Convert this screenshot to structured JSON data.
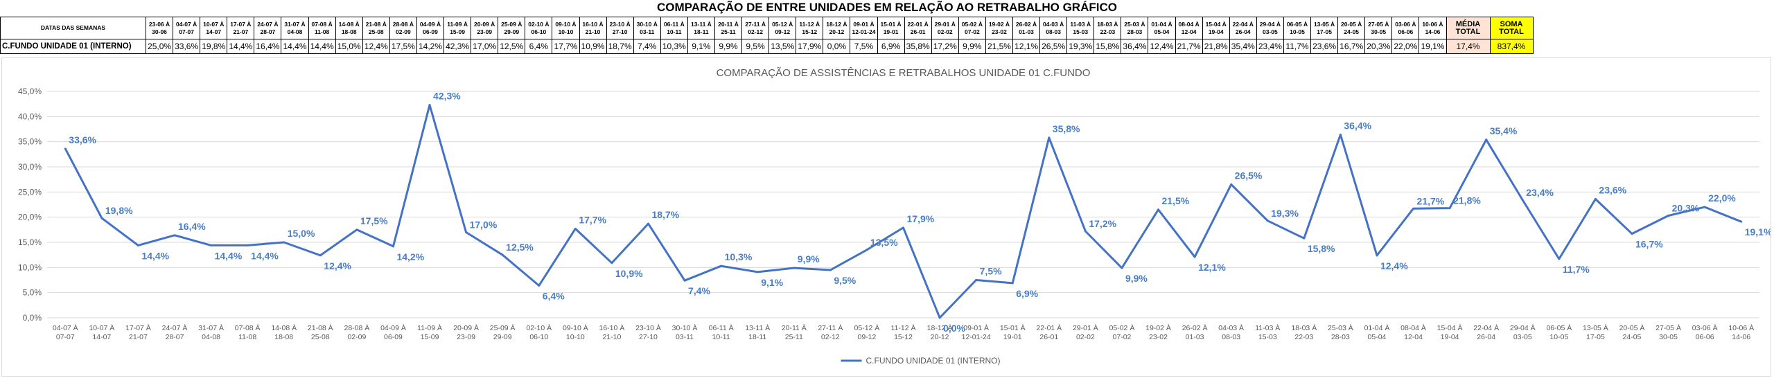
{
  "header": {
    "title": "COMPARAÇÃO DE ENTRE UNIDADES EM RELAÇÃO AO RETRABALHO GRÁFICO"
  },
  "table": {
    "row_header": "DATAS DAS SEMANAS",
    "unit_label": "C.FUNDO UNIDADE 01 (INTERNO)",
    "date_ranges": [
      [
        "23-06 À",
        "30-06"
      ],
      [
        "04-07 À",
        "07-07"
      ],
      [
        "10-07 À",
        "14-07"
      ],
      [
        "17-07 À",
        "21-07"
      ],
      [
        "24-07 À",
        "28-07"
      ],
      [
        "31-07 À",
        "04-08"
      ],
      [
        "07-08 À",
        "11-08"
      ],
      [
        "14-08 À",
        "18-08"
      ],
      [
        "21-08 À",
        "25-08"
      ],
      [
        "28-08 À",
        "02-09"
      ],
      [
        "04-09 À",
        "06-09"
      ],
      [
        "11-09 À",
        "15-09"
      ],
      [
        "20-09 À",
        "23-09"
      ],
      [
        "25-09 À",
        "29-09"
      ],
      [
        "02-10 À",
        "06-10"
      ],
      [
        "09-10 À",
        "10-10"
      ],
      [
        "16-10 À",
        "21-10"
      ],
      [
        "23-10 À",
        "27-10"
      ],
      [
        "30-10 À",
        "03-11"
      ],
      [
        "06-11 À",
        "10-11"
      ],
      [
        "13-11 À",
        "18-11"
      ],
      [
        "20-11 À",
        "25-11"
      ],
      [
        "27-11 À",
        "02-12"
      ],
      [
        "05-12 À",
        "09-12"
      ],
      [
        "11-12 À",
        "15-12"
      ],
      [
        "18-12 À",
        "20-12"
      ],
      [
        "09-01 À",
        "12-01-24"
      ],
      [
        "15-01 À",
        "19-01"
      ],
      [
        "22-01 À",
        "26-01"
      ],
      [
        "29-01 À",
        "02-02"
      ],
      [
        "05-02 À",
        "07-02"
      ],
      [
        "19-02 À",
        "23-02"
      ],
      [
        "26-02 À",
        "01-03"
      ],
      [
        "04-03 À",
        "08-03"
      ],
      [
        "11-03 À",
        "15-03"
      ],
      [
        "18-03 À",
        "22-03"
      ],
      [
        "25-03 À",
        "28-03"
      ],
      [
        "01-04 À",
        "05-04"
      ],
      [
        "08-04 À",
        "12-04"
      ],
      [
        "15-04 À",
        "19-04"
      ],
      [
        "22-04 À",
        "26-04"
      ],
      [
        "29-04 À",
        "03-05"
      ],
      [
        "06-05 À",
        "10-05"
      ],
      [
        "13-05 À",
        "17-05"
      ],
      [
        "20-05 À",
        "24-05"
      ],
      [
        "27-05 À",
        "30-05"
      ],
      [
        "03-06 À",
        "06-06"
      ],
      [
        "10-06 À",
        "14-06"
      ]
    ],
    "values": [
      "25,0%",
      "33,6%",
      "19,8%",
      "14,4%",
      "16,4%",
      "14,4%",
      "14,4%",
      "15,0%",
      "12,4%",
      "17,5%",
      "14,2%",
      "42,3%",
      "17,0%",
      "12,5%",
      "6,4%",
      "17,7%",
      "10,9%",
      "18,7%",
      "7,4%",
      "10,3%",
      "9,1%",
      "9,9%",
      "9,5%",
      "13,5%",
      "17,9%",
      "0,0%",
      "7,5%",
      "6,9%",
      "35,8%",
      "17,2%",
      "9,9%",
      "21,5%",
      "12,1%",
      "26,5%",
      "19,3%",
      "15,8%",
      "36,4%",
      "12,4%",
      "21,7%",
      "21,8%",
      "35,4%",
      "23,4%",
      "11,7%",
      "23,6%",
      "16,7%",
      "20,3%",
      "22,0%",
      "19,1%"
    ],
    "media_label": [
      "MÉDIA",
      "TOTAL"
    ],
    "media_value": "17,4%",
    "soma_label": [
      "SOMA",
      "TOTAL"
    ],
    "soma_value": "837,4%",
    "colors": {
      "media_bg": "#ffe4d6",
      "soma_bg": "#ffff00"
    }
  },
  "chart_data": {
    "type": "line",
    "title": "COMPARAÇÃO DE ASSISTÊNCIAS E RETRABALHOS UNIDADE 01 C.FUNDO",
    "categories": [
      [
        "04-07 À",
        "07-07"
      ],
      [
        "10-07 À",
        "14-07"
      ],
      [
        "17-07 À",
        "21-07"
      ],
      [
        "24-07 À",
        "28-07"
      ],
      [
        "31-07 À",
        "04-08"
      ],
      [
        "07-08 À",
        "11-08"
      ],
      [
        "14-08 À",
        "18-08"
      ],
      [
        "21-08 À",
        "25-08"
      ],
      [
        "28-08 À",
        "02-09"
      ],
      [
        "04-09 À",
        "06-09"
      ],
      [
        "11-09 À",
        "15-09"
      ],
      [
        "20-09 À",
        "23-09"
      ],
      [
        "25-09 À",
        "29-09"
      ],
      [
        "02-10 À",
        "06-10"
      ],
      [
        "09-10 À",
        "10-10"
      ],
      [
        "16-10 À",
        "21-10"
      ],
      [
        "23-10 À",
        "27-10"
      ],
      [
        "30-10 À",
        "03-11"
      ],
      [
        "06-11 À",
        "10-11"
      ],
      [
        "13-11 À",
        "18-11"
      ],
      [
        "20-11 À",
        "25-11"
      ],
      [
        "27-11 À",
        "02-12"
      ],
      [
        "05-12 À",
        "09-12"
      ],
      [
        "11-12 À",
        "15-12"
      ],
      [
        "18-12 À",
        "20-12"
      ],
      [
        "09-01 À",
        "12-01-24"
      ],
      [
        "15-01 À",
        "19-01"
      ],
      [
        "22-01 À",
        "26-01"
      ],
      [
        "29-01 À",
        "02-02"
      ],
      [
        "05-02 À",
        "07-02"
      ],
      [
        "19-02 À",
        "23-02"
      ],
      [
        "26-02 À",
        "01-03"
      ],
      [
        "04-03 À",
        "08-03"
      ],
      [
        "11-03 À",
        "15-03"
      ],
      [
        "18-03 À",
        "22-03"
      ],
      [
        "25-03 À",
        "28-03"
      ],
      [
        "01-04 À",
        "05-04"
      ],
      [
        "08-04 À",
        "12-04"
      ],
      [
        "15-04 À",
        "19-04"
      ],
      [
        "22-04 À",
        "26-04"
      ],
      [
        "29-04 À",
        "03-05"
      ],
      [
        "06-05 À",
        "10-05"
      ],
      [
        "13-05 À",
        "17-05"
      ],
      [
        "20-05 À",
        "24-05"
      ],
      [
        "27-05 À",
        "30-05"
      ],
      [
        "03-06 À",
        "06-06"
      ],
      [
        "10-06 À",
        "14-06"
      ]
    ],
    "series": [
      {
        "name": "C.FUNDO UNIDADE 01 (INTERNO)",
        "color": "#4472c4",
        "values": [
          33.6,
          19.8,
          14.4,
          16.4,
          14.4,
          14.4,
          15.0,
          12.4,
          17.5,
          14.2,
          42.3,
          17.0,
          12.5,
          6.4,
          17.7,
          10.9,
          18.7,
          7.4,
          10.3,
          9.1,
          9.9,
          9.5,
          13.5,
          17.9,
          0.0,
          7.5,
          6.9,
          35.8,
          17.2,
          9.9,
          21.5,
          12.1,
          26.5,
          19.3,
          15.8,
          36.4,
          12.4,
          21.7,
          21.8,
          35.4,
          23.4,
          11.7,
          23.6,
          16.7,
          20.3,
          22.0,
          19.1
        ],
        "labels": [
          "33,6%",
          "19,8%",
          "14,4%",
          "16,4%",
          "14,4%",
          "14,4%",
          "15,0%",
          "12,4%",
          "17,5%",
          "14,2%",
          "42,3%",
          "17,0%",
          "12,5%",
          "6,4%",
          "17,7%",
          "10,9%",
          "18,7%",
          "7,4%",
          "10,3%",
          "9,1%",
          "9,9%",
          "9,5%",
          "13,5%",
          "17,9%",
          "0,0%",
          "7,5%",
          "6,9%",
          "35,8%",
          "17,2%",
          "9,9%",
          "21,5%",
          "12,1%",
          "26,5%",
          "19,3%",
          "15,8%",
          "36,4%",
          "12,4%",
          "21,7%",
          "21,8%",
          "35,4%",
          "23,4%",
          "11,7%",
          "23,6%",
          "16,7%",
          "20,3%",
          "22,0%",
          "19,1%"
        ]
      }
    ],
    "yticks": [
      "0,0%",
      "5,0%",
      "10,0%",
      "15,0%",
      "20,0%",
      "25,0%",
      "30,0%",
      "35,0%",
      "40,0%",
      "45,0%"
    ],
    "ylim": [
      0,
      45
    ],
    "grid": true,
    "legend": "bottom"
  }
}
